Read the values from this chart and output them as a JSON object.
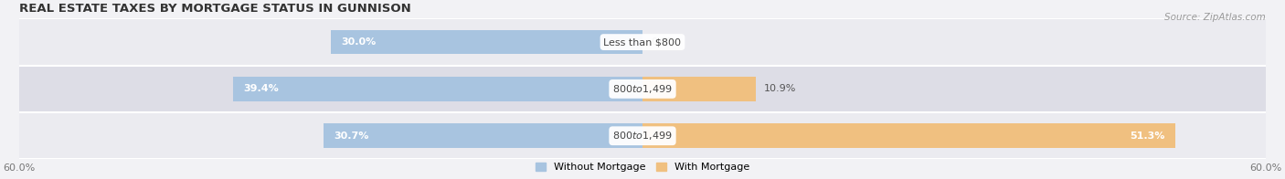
{
  "title": "REAL ESTATE TAXES BY MORTGAGE STATUS IN GUNNISON",
  "source": "Source: ZipAtlas.com",
  "rows": [
    {
      "label": "Less than $800",
      "without_mortgage": 30.0,
      "with_mortgage": 0.0
    },
    {
      "label": "$800 to $1,499",
      "without_mortgage": 39.4,
      "with_mortgage": 10.9
    },
    {
      "label": "$800 to $1,499",
      "without_mortgage": 30.7,
      "with_mortgage": 51.3
    }
  ],
  "x_max": 60.0,
  "x_min": -60.0,
  "color_without": "#a8c4e0",
  "color_with": "#f0c080",
  "color_row_bg": [
    "#ebebf0",
    "#dddde6",
    "#ebebf0"
  ],
  "bar_height": 0.52,
  "title_fontsize": 9.5,
  "label_fontsize": 8.0,
  "tick_fontsize": 8,
  "source_fontsize": 7.5,
  "legend_fontsize": 8.0
}
